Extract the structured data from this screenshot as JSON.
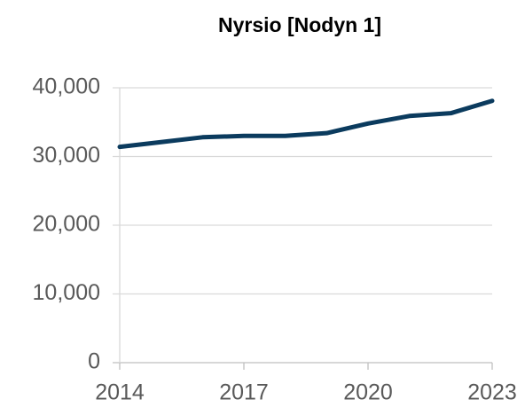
{
  "chart_data": {
    "type": "line",
    "title": "Nyrsio [Nodyn 1]",
    "x": [
      2014,
      2015,
      2016,
      2017,
      2018,
      2019,
      2020,
      2021,
      2022,
      2023
    ],
    "series": [
      {
        "name": "Nyrsio",
        "color": "#0b3b5e",
        "values": [
          31400,
          32100,
          32800,
          33000,
          33000,
          33400,
          34800,
          35900,
          36300,
          38100
        ]
      }
    ],
    "xlim": [
      2014,
      2023
    ],
    "xticks": [
      2014,
      2017,
      2020,
      2023
    ],
    "ylim": [
      0,
      40000
    ],
    "yticks": [
      0,
      {
        "value": 10000,
        "label": "10,000"
      },
      {
        "value": 20000,
        "label": "20,000"
      },
      {
        "value": 30000,
        "label": "30,000"
      },
      {
        "value": 40000,
        "label": "40,000"
      }
    ],
    "grid": true
  }
}
